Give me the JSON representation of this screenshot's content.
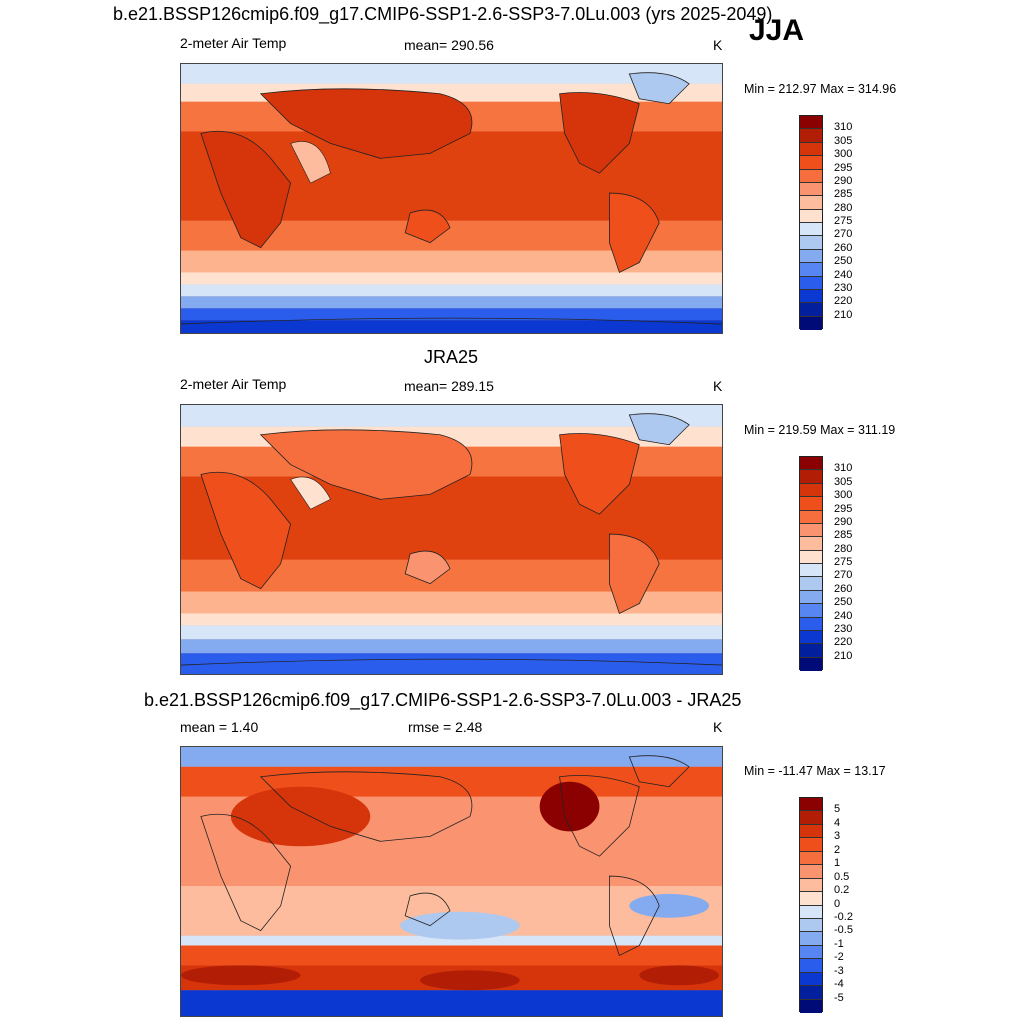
{
  "header": {
    "title": "b.e21.BSSP126cmip6.f09_g17.CMIP6-SSP1-2.6-SSP3-7.0Lu.003 (yrs 2025-2049)",
    "season": "JJA"
  },
  "panel1": {
    "variable": "2-meter Air Temp",
    "mean": "mean= 290.56",
    "units": "K",
    "minmax": "Min = 212.97 Max = 314.96"
  },
  "panel2": {
    "title": "JRA25",
    "variable": "2-meter Air Temp",
    "mean": "mean= 289.15",
    "units": "K",
    "minmax": "Min = 219.59 Max = 311.19"
  },
  "panel3": {
    "title": "b.e21.BSSP126cmip6.f09_g17.CMIP6-SSP1-2.6-SSP3-7.0Lu.003 - JRA25",
    "mean": "mean =   1.40",
    "rmse": "rmse =   2.48",
    "units": "K",
    "minmax": "Min = -11.47 Max =  13.17"
  },
  "temp_colorbar": {
    "labels": [
      "310",
      "305",
      "300",
      "295",
      "290",
      "285",
      "280",
      "275",
      "270",
      "260",
      "250",
      "240",
      "230",
      "220",
      "210"
    ],
    "colors": [
      "#8b0000",
      "#b21e05",
      "#d6340b",
      "#ee4f1b",
      "#f76e3e",
      "#fa9470",
      "#fcbc9d",
      "#fee2cf",
      "#d6e6f8",
      "#aec9ef",
      "#84aaf0",
      "#5786f2",
      "#2b5ded",
      "#0a38d1",
      "#02209e",
      "#000b78"
    ]
  },
  "diff_colorbar": {
    "labels": [
      "5",
      "4",
      "3",
      "2",
      "1",
      "0.5",
      "0.2",
      "0",
      "-0.2",
      "-0.5",
      "-1",
      "-2",
      "-3",
      "-4",
      "-5"
    ],
    "colors": [
      "#8b0000",
      "#b21e05",
      "#d6340b",
      "#ee4f1b",
      "#f76e3e",
      "#fa9470",
      "#fcbc9d",
      "#fee2cf",
      "#d6e6f8",
      "#aec9ef",
      "#84aaf0",
      "#5786f2",
      "#2b5ded",
      "#0a38d1",
      "#02209e",
      "#000b78"
    ]
  },
  "map_colors": {
    "hot": "#b22000",
    "warm": "#e0420f",
    "mild": "#f6743f",
    "cool": "#fcb38e",
    "pale": "#fee2cf",
    "cold1": "#d6e6f8",
    "cold2": "#84aaf0",
    "cold3": "#2b5ded",
    "cold4": "#0a38d1"
  }
}
